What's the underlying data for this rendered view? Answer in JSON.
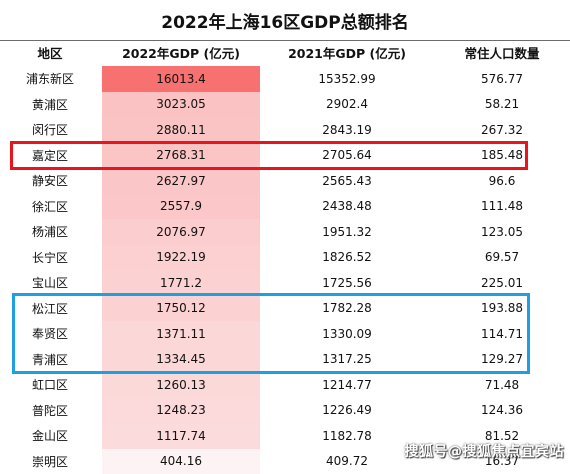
{
  "title": "2022年上海16区GDP总额排名",
  "headers": [
    "地区",
    "2022年GDP (亿元)",
    "2021年GDP (亿元)",
    "常住人口数量"
  ],
  "rows": [
    [
      "浦东新区",
      "16013.4",
      "15352.99",
      "576.77"
    ],
    [
      "黄浦区",
      "3023.05",
      "2902.4",
      "58.21"
    ],
    [
      "闵行区",
      "2880.11",
      "2843.19",
      "267.32"
    ],
    [
      "嘉定区",
      "2768.31",
      "2705.64",
      "185.48"
    ],
    [
      "静安区",
      "2627.97",
      "2565.43",
      "96.6"
    ],
    [
      "徐汇区",
      "2557.9",
      "2438.48",
      "111.48"
    ],
    [
      "杨浦区",
      "2076.97",
      "1951.32",
      "123.05"
    ],
    [
      "长宁区",
      "1922.19",
      "1826.52",
      "69.57"
    ],
    [
      "宝山区",
      "1771.2",
      "1725.56",
      "225.01"
    ],
    [
      "松江区",
      "1750.12",
      "1782.28",
      "193.88"
    ],
    [
      "奉贤区",
      "1371.11",
      "1330.09",
      "114.71"
    ],
    [
      "青浦区",
      "1334.45",
      "1317.25",
      "129.27"
    ],
    [
      "虹口区",
      "1260.13",
      "1214.77",
      "71.48"
    ],
    [
      "普陀区",
      "1248.23",
      "1226.49",
      "124.36"
    ],
    [
      "金山区",
      "1117.74",
      "1182.78",
      "81.52"
    ],
    [
      "崇明区",
      "404.16",
      "409.72",
      "16.37"
    ]
  ],
  "highlights": {
    "red_row_index": 3,
    "blue_row_indices": [
      9,
      10,
      11
    ],
    "red_color": "#e8151c",
    "blue_color": "#1ea0e0"
  },
  "heat": {
    "max_color": "#f87171",
    "min_color": "#fdf3f4"
  },
  "watermark": "搜狐号@搜狐焦点宜宾站"
}
